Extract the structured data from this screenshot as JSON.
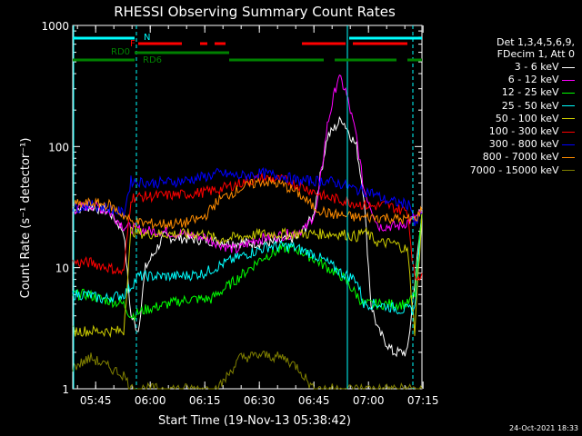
{
  "chart_data": {
    "type": "line",
    "title": "RHESSI Observing Summary Count Rates",
    "xlabel": "Start Time (19-Nov-13 05:38:42)",
    "ylabel": "Count Rate (s⁻¹ detector⁻¹)",
    "y_scale": "log",
    "ylim": [
      1,
      1000
    ],
    "xlim_minutes": [
      0,
      96
    ],
    "x_ticks": [
      "05:45",
      "06:00",
      "06:15",
      "06:30",
      "06:45",
      "07:00",
      "07:15"
    ],
    "y_ticks": [
      "1",
      "10",
      "100",
      "1000"
    ],
    "legend_header": [
      "Det 1,3,4,5,6,9,",
      "FDecim 1, Att 0"
    ],
    "annotations": {
      "N": "N",
      "F": "F",
      "RD0": "RD0",
      "RD6": "RD6"
    },
    "series": [
      {
        "name": "3 - 6 keV",
        "color": "#ffffff",
        "points": [
          [
            0,
            30
          ],
          [
            5,
            32
          ],
          [
            10,
            29
          ],
          [
            14,
            20
          ],
          [
            16,
            4
          ],
          [
            18,
            3
          ],
          [
            20,
            10
          ],
          [
            25,
            18
          ],
          [
            35,
            17
          ],
          [
            45,
            16
          ],
          [
            55,
            16
          ],
          [
            62,
            18
          ],
          [
            66,
            26
          ],
          [
            70,
            120
          ],
          [
            74,
            170
          ],
          [
            78,
            100
          ],
          [
            80,
            40
          ],
          [
            82,
            5
          ],
          [
            84,
            3
          ],
          [
            88,
            2
          ],
          [
            92,
            2
          ],
          [
            96,
            28
          ]
        ]
      },
      {
        "name": "6 - 12 keV",
        "color": "#ff00ff",
        "points": [
          [
            0,
            30
          ],
          [
            5,
            33
          ],
          [
            10,
            29
          ],
          [
            14,
            22
          ],
          [
            17,
            21
          ],
          [
            21,
            20
          ],
          [
            24,
            20
          ],
          [
            30,
            19
          ],
          [
            36,
            18
          ],
          [
            42,
            15
          ],
          [
            45,
            14
          ],
          [
            50,
            17
          ],
          [
            55,
            18
          ],
          [
            60,
            19
          ],
          [
            64,
            21
          ],
          [
            67,
            30
          ],
          [
            70,
            150
          ],
          [
            73,
            380
          ],
          [
            75,
            290
          ],
          [
            78,
            120
          ],
          [
            80,
            45
          ],
          [
            84,
            22
          ],
          [
            90,
            22
          ],
          [
            96,
            28
          ]
        ]
      },
      {
        "name": "12 - 25 keV",
        "color": "#00ff00",
        "points": [
          [
            0,
            6
          ],
          [
            4,
            6
          ],
          [
            8,
            5.5
          ],
          [
            14,
            5
          ],
          [
            16,
            4
          ],
          [
            20,
            4.5
          ],
          [
            26,
            5
          ],
          [
            32,
            5.5
          ],
          [
            38,
            5.5
          ],
          [
            45,
            8
          ],
          [
            52,
            12
          ],
          [
            58,
            14.5
          ],
          [
            62,
            14
          ],
          [
            66,
            12
          ],
          [
            70,
            10
          ],
          [
            74,
            8.5
          ],
          [
            78,
            6
          ],
          [
            80,
            5
          ],
          [
            84,
            5
          ],
          [
            92,
            5
          ],
          [
            94,
            6
          ],
          [
            96,
            28
          ]
        ]
      },
      {
        "name": "25 - 50 keV",
        "color": "#00ffff",
        "points": [
          [
            0,
            6
          ],
          [
            4,
            6
          ],
          [
            8,
            5.5
          ],
          [
            14,
            6
          ],
          [
            16,
            7
          ],
          [
            18,
            8.5
          ],
          [
            24,
            8.5
          ],
          [
            30,
            8.5
          ],
          [
            36,
            9
          ],
          [
            42,
            11
          ],
          [
            48,
            13
          ],
          [
            54,
            15
          ],
          [
            60,
            15
          ],
          [
            66,
            13
          ],
          [
            70,
            11
          ],
          [
            74,
            9
          ],
          [
            78,
            8
          ],
          [
            80,
            5
          ],
          [
            84,
            5
          ],
          [
            90,
            4.5
          ],
          [
            94,
            4.5
          ],
          [
            96,
            28
          ]
        ]
      },
      {
        "name": "50 - 100 keV",
        "color": "#cccc00",
        "points": [
          [
            0,
            3
          ],
          [
            5,
            3
          ],
          [
            10,
            3
          ],
          [
            14,
            3
          ],
          [
            16,
            20
          ],
          [
            20,
            19
          ],
          [
            28,
            19
          ],
          [
            36,
            19
          ],
          [
            40,
            17
          ],
          [
            46,
            18
          ],
          [
            52,
            19
          ],
          [
            58,
            19
          ],
          [
            64,
            19
          ],
          [
            70,
            19
          ],
          [
            74,
            19
          ],
          [
            78,
            18
          ],
          [
            80,
            20
          ],
          [
            84,
            16
          ],
          [
            88,
            16
          ],
          [
            92,
            14
          ],
          [
            94,
            3
          ],
          [
            96,
            28
          ]
        ]
      },
      {
        "name": "100 - 300 keV",
        "color": "#ff0000",
        "points": [
          [
            0,
            11
          ],
          [
            5,
            11
          ],
          [
            10,
            10
          ],
          [
            14,
            9
          ],
          [
            16,
            38
          ],
          [
            22,
            39
          ],
          [
            30,
            40
          ],
          [
            36,
            42
          ],
          [
            40,
            44
          ],
          [
            46,
            50
          ],
          [
            52,
            55
          ],
          [
            58,
            53
          ],
          [
            62,
            48
          ],
          [
            66,
            43
          ],
          [
            68,
            40
          ],
          [
            70,
            38
          ],
          [
            74,
            36
          ],
          [
            78,
            34
          ],
          [
            82,
            32
          ],
          [
            86,
            33
          ],
          [
            90,
            30
          ],
          [
            92,
            30
          ],
          [
            94,
            8
          ],
          [
            96,
            9
          ]
        ]
      },
      {
        "name": "300 - 800 keV",
        "color": "#0000ff",
        "points": [
          [
            0,
            31
          ],
          [
            5,
            33
          ],
          [
            10,
            31
          ],
          [
            14,
            28
          ],
          [
            16,
            52
          ],
          [
            22,
            50
          ],
          [
            30,
            52
          ],
          [
            36,
            56
          ],
          [
            40,
            60
          ],
          [
            46,
            57
          ],
          [
            52,
            60
          ],
          [
            58,
            57
          ],
          [
            62,
            52
          ],
          [
            66,
            52
          ],
          [
            70,
            52
          ],
          [
            74,
            49
          ],
          [
            78,
            44
          ],
          [
            82,
            42
          ],
          [
            86,
            36
          ],
          [
            90,
            34
          ],
          [
            93,
            33
          ],
          [
            94,
            22
          ],
          [
            96,
            28
          ]
        ]
      },
      {
        "name": "800 - 7000 keV",
        "color": "#ff8c00",
        "points": [
          [
            0,
            33
          ],
          [
            5,
            34
          ],
          [
            10,
            33
          ],
          [
            14,
            27
          ],
          [
            16,
            24
          ],
          [
            22,
            23
          ],
          [
            30,
            23
          ],
          [
            36,
            26
          ],
          [
            40,
            36
          ],
          [
            46,
            45
          ],
          [
            52,
            52
          ],
          [
            58,
            48
          ],
          [
            62,
            41
          ],
          [
            66,
            32
          ],
          [
            70,
            28
          ],
          [
            74,
            27
          ],
          [
            78,
            26
          ],
          [
            82,
            26
          ],
          [
            86,
            26
          ],
          [
            90,
            25
          ],
          [
            94,
            25
          ],
          [
            96,
            30
          ]
        ]
      },
      {
        "name": "7000 - 15000 keV",
        "color": "#808000",
        "points": [
          [
            0,
            1.5
          ],
          [
            5,
            1.8
          ],
          [
            10,
            1.5
          ],
          [
            14,
            1.3
          ],
          [
            16,
            1
          ],
          [
            40,
            1
          ],
          [
            46,
            1.8
          ],
          [
            52,
            1.9
          ],
          [
            58,
            1.8
          ],
          [
            62,
            1.5
          ],
          [
            66,
            1
          ],
          [
            96,
            1
          ]
        ]
      }
    ],
    "state_bars": [
      {
        "label": "N",
        "color": "#00ffff",
        "segments": [
          [
            0,
            17
          ],
          [
            76,
            96
          ]
        ],
        "level_px": 42
      },
      {
        "label": "F",
        "color": "#ff0000",
        "segments": [
          [
            18,
            30
          ],
          [
            35,
            37
          ],
          [
            39,
            42
          ],
          [
            63,
            75
          ],
          [
            77,
            92
          ]
        ],
        "level_px": 48
      },
      {
        "label": "RD0",
        "color": "#008000",
        "segments": [
          [
            17,
            43
          ]
        ],
        "level_px": 58
      },
      {
        "label": "RD6",
        "color": "#008000",
        "segments": [
          [
            0,
            17
          ],
          [
            43,
            69
          ],
          [
            72,
            89
          ],
          [
            92,
            96
          ]
        ],
        "level_px": 66
      }
    ],
    "vlines_dashed": [
      17.5,
      93.5
    ],
    "vlines_solid": [
      75.5
    ]
  },
  "footer_date": "24-Oct-2021 18:33"
}
